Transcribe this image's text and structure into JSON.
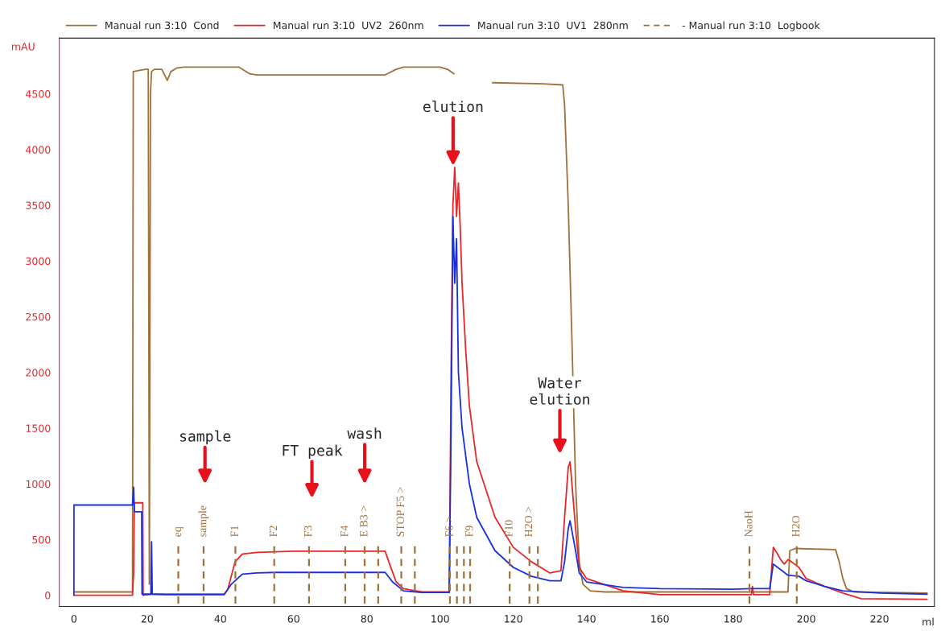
{
  "chart_data": {
    "type": "line",
    "xlabel": "ml",
    "ylabel": "mAU",
    "xlim": [
      -4,
      235
    ],
    "ylim": [
      -100,
      5000
    ],
    "xticks": [
      0,
      20,
      40,
      60,
      80,
      100,
      120,
      140,
      160,
      180,
      200,
      220
    ],
    "yticks": [
      0,
      500,
      1000,
      1500,
      2000,
      2500,
      3000,
      3500,
      4000,
      4500
    ],
    "grid": false,
    "legend": "top",
    "marker": "none",
    "line_style": "solid",
    "series": [
      {
        "name": "Manual run 3:10  Cond",
        "color": "#a0703a",
        "x": [
          0,
          16,
          16.2,
          19.5,
          20.3,
          20.6,
          20.9,
          21.2,
          22,
          24,
          25.5,
          26.5,
          28,
          30,
          45,
          48,
          50,
          85,
          88,
          90,
          100,
          102,
          103.8,
          104,
          114.3,
          128,
          133.5,
          134,
          135,
          136,
          137,
          138,
          139,
          141,
          145,
          160,
          195,
          195.5,
          197,
          208,
          209,
          210,
          211,
          213,
          233
        ],
        "values": [
          30,
          30,
          4700,
          4720,
          4720,
          100,
          4500,
          4700,
          4720,
          4720,
          4620,
          4700,
          4730,
          4740,
          4740,
          4680,
          4670,
          4670,
          4720,
          4740,
          4740,
          4720,
          4680,
          null,
          4600,
          4590,
          4580,
          4400,
          3500,
          2300,
          1000,
          300,
          100,
          40,
          30,
          30,
          30,
          400,
          420,
          410,
          300,
          150,
          60,
          30,
          20
        ]
      },
      {
        "name": "Manual run 3:10  UV2  260nm",
        "color": "#e8262a",
        "x": [
          0,
          16,
          16.3,
          16.5,
          18.8,
          18.9,
          21,
          25,
          41,
          42,
          44,
          46,
          50,
          60,
          85,
          86,
          88,
          90,
          95,
          102.5,
          103,
          103.5,
          104,
          104.5,
          105,
          105.5,
          106,
          107,
          108,
          110,
          115,
          120,
          125,
          130,
          133,
          134,
          135,
          135.5,
          136,
          137,
          138,
          140,
          150,
          160,
          185,
          185.3,
          185.6,
          190,
          191,
          192,
          193,
          194,
          195,
          196,
          198,
          200,
          205,
          210,
          215,
          233
        ],
        "values": [
          0,
          0,
          200,
          830,
          830,
          0,
          10,
          10,
          10,
          50,
          300,
          370,
          385,
          395,
          395,
          300,
          120,
          60,
          30,
          30,
          2000,
          3500,
          3840,
          3400,
          3700,
          3300,
          2800,
          2200,
          1700,
          1200,
          700,
          430,
          300,
          200,
          220,
          700,
          1150,
          1198,
          1000,
          600,
          250,
          150,
          40,
          5,
          5,
          80,
          5,
          5,
          430,
          380,
          320,
          280,
          320,
          300,
          250,
          150,
          80,
          20,
          -30,
          -36
        ]
      },
      {
        "name": "Manual run 3:10  UV1  280nm",
        "color": "#1a2fe0",
        "x": [
          0,
          0.01,
          16,
          16.3,
          16.5,
          18.5,
          18.6,
          21,
          21.2,
          21.4,
          25,
          41,
          43,
          46,
          50,
          55,
          85,
          87,
          90,
          95,
          102.5,
          103,
          103.5,
          104,
          104.5,
          105,
          106,
          108,
          110,
          115,
          120,
          125,
          130,
          133,
          134,
          135,
          135.5,
          137,
          138,
          140,
          150,
          160,
          180,
          185,
          190,
          191,
          193,
          195,
          198,
          200,
          205,
          210,
          220,
          233
        ],
        "values": [
          0,
          810,
          810,
          970,
          750,
          750,
          10,
          10,
          480,
          10,
          5,
          5,
          100,
          190,
          200,
          205,
          205,
          120,
          40,
          25,
          25,
          1500,
          3398,
          2800,
          3200,
          2000,
          1500,
          1000,
          700,
          400,
          250,
          170,
          130,
          130,
          300,
          600,
          668,
          400,
          200,
          120,
          70,
          60,
          55,
          60,
          60,
          280,
          230,
          180,
          170,
          130,
          80,
          40,
          20,
          10
        ]
      },
      {
        "name": "- Manual run 3:10  Logbook",
        "color": "#a0703a",
        "type": "line",
        "line_style": "dashed"
      }
    ],
    "ref_lines": [
      {
        "axis": "x",
        "value": 28.5,
        "label": "eq",
        "color": "#a0703a",
        "line_style": "dashed"
      },
      {
        "axis": "x",
        "value": 35.4,
        "label": "sample",
        "color": "#a0703a",
        "line_style": "dashed"
      },
      {
        "axis": "x",
        "value": 44.1,
        "label": "F1",
        "color": "#a0703a",
        "line_style": "dashed"
      },
      {
        "axis": "x",
        "value": 54.7,
        "label": "F2",
        "color": "#a0703a",
        "line_style": "dashed"
      },
      {
        "axis": "x",
        "value": 64.2,
        "label": "F3",
        "color": "#a0703a",
        "line_style": "dashed"
      },
      {
        "axis": "x",
        "value": 74.1,
        "label": "F4",
        "color": "#a0703a",
        "line_style": "dashed"
      },
      {
        "axis": "x",
        "value": 79.4,
        "label": "E B3 >",
        "color": "#a0703a",
        "line_style": "dashed"
      },
      {
        "axis": "x",
        "value": 83.1,
        "label": null,
        "color": "#a0703a",
        "line_style": "dashed"
      },
      {
        "axis": "x",
        "value": 89.4,
        "label": "STOP F5 >",
        "color": "#a0703a",
        "line_style": "dashed"
      },
      {
        "axis": "x",
        "value": 93.1,
        "label": null,
        "color": "#a0703a",
        "line_style": "dashed"
      },
      {
        "axis": "x",
        "value": 102.7,
        "label": "F6 >",
        "color": "#a0703a",
        "line_style": "dashed"
      },
      {
        "axis": "x",
        "value": 104.6,
        "label": null,
        "color": "#a0703a",
        "line_style": "dashed"
      },
      {
        "axis": "x",
        "value": 106.5,
        "label": null,
        "color": "#a0703a",
        "line_style": "dashed"
      },
      {
        "axis": "x",
        "value": 108.2,
        "label": "F9",
        "color": "#a0703a",
        "line_style": "dashed"
      },
      {
        "axis": "x",
        "value": 119,
        "label": "F10",
        "color": "#a0703a",
        "line_style": "dashed"
      },
      {
        "axis": "x",
        "value": 124.4,
        "label": "H2O >",
        "color": "#a0703a",
        "line_style": "dashed"
      },
      {
        "axis": "x",
        "value": 126.7,
        "label": null,
        "color": "#a0703a",
        "line_style": "dashed"
      },
      {
        "axis": "x",
        "value": 184.5,
        "label": "NaoH",
        "color": "#a0703a",
        "line_style": "dashed"
      },
      {
        "axis": "x",
        "value": 197.4,
        "label": "H2O",
        "color": "#a0703a",
        "line_style": "dashed"
      }
    ],
    "annotations": [
      "sample",
      "FT peak",
      "wash",
      "elution",
      "Water\nelution"
    ]
  }
}
